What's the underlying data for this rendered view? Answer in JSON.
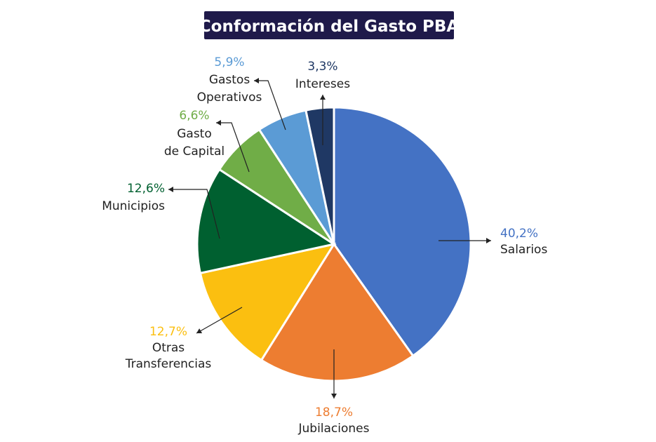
{
  "chart_data": {
    "type": "pie",
    "title": "Conformación del Gasto PBA",
    "slices": [
      {
        "name": "Salarios",
        "name_lines": [
          "Salarios"
        ],
        "value": 40.2,
        "label": "40,2%",
        "color": "#4472C4"
      },
      {
        "name": "Jubilaciones",
        "name_lines": [
          "Jubilaciones"
        ],
        "value": 18.7,
        "label": "18,7%",
        "color": "#ED7D31"
      },
      {
        "name": "Otras Transferencias",
        "name_lines": [
          "Otras",
          "Transferencias"
        ],
        "value": 12.7,
        "label": "12,7%",
        "color": "#FBBF10"
      },
      {
        "name": "Municipios",
        "name_lines": [
          "Municipios"
        ],
        "value": 12.6,
        "label": "12,6%",
        "color": "#006030"
      },
      {
        "name": "Gasto de Capital",
        "name_lines": [
          "Gasto",
          "de Capital"
        ],
        "value": 6.6,
        "label": "6,6%",
        "color": "#70AD47"
      },
      {
        "name": "Gastos Operativos",
        "name_lines": [
          "Gastos",
          "Operativos"
        ],
        "value": 5.9,
        "label": "5,9%",
        "color": "#5B9BD5"
      },
      {
        "name": "Intereses",
        "name_lines": [
          "Intereses"
        ],
        "value": 3.3,
        "label": "3,3%",
        "color": "#1F3864"
      }
    ]
  }
}
